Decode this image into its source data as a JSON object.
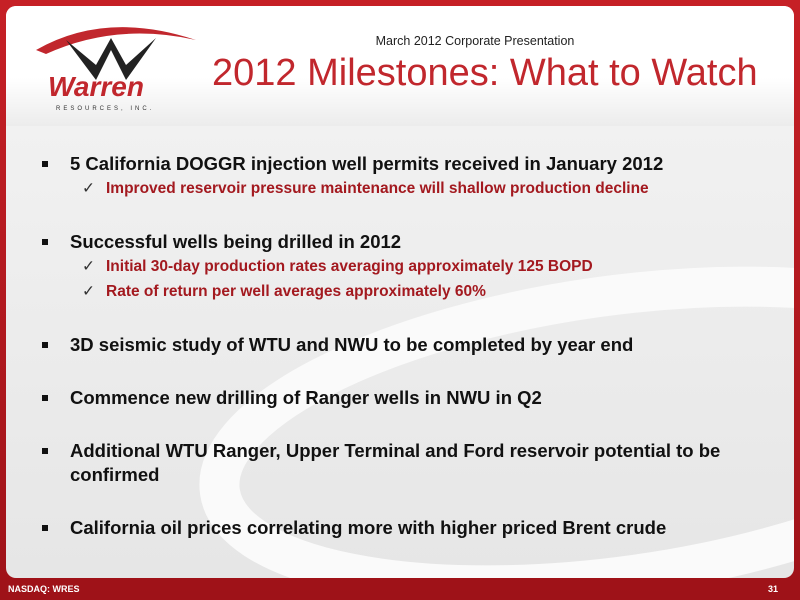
{
  "header": {
    "logo": {
      "name": "Warren",
      "subtitle": "RESOURCES, INC."
    },
    "subtitle": "March 2012 Corporate Presentation",
    "title": "2012 Milestones: What to Watch"
  },
  "bullets": [
    {
      "text": "5 California DOGGR injection well permits received in January 2012",
      "subs": [
        "Improved reservoir pressure maintenance will shallow production decline"
      ]
    },
    {
      "text": "Successful wells being drilled in 2012",
      "subs": [
        "Initial 30-day production rates averaging approximately 125 BOPD",
        "Rate of return per well averages approximately 60%"
      ]
    },
    {
      "text": "3D seismic study of WTU and NWU to be completed by year end"
    },
    {
      "text": "Commence new drilling of Ranger wells in NWU in Q2"
    },
    {
      "text": "Additional WTU Ranger, Upper Terminal and Ford reservoir potential to be confirmed"
    },
    {
      "text": "California oil prices correlating more with higher priced Brent crude"
    }
  ],
  "footer": {
    "ticker": "NASDAQ: WRES",
    "page": "31"
  }
}
